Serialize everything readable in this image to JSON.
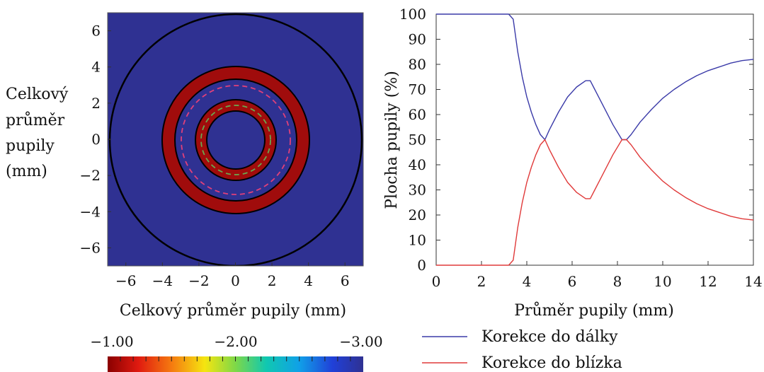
{
  "left_plot": {
    "ylabel_lines": [
      "Celkový",
      "průměr",
      "pupily",
      "(mm)"
    ],
    "xlabel": "Celkový průměr pupily (mm)",
    "x_ticks": [
      "−6",
      "−4",
      "−2",
      "0",
      "2",
      "4",
      "6"
    ],
    "y_ticks": [
      "6",
      "4",
      "2",
      "0",
      "−2",
      "−4",
      "−6"
    ],
    "colors": {
      "background": "#2f3192",
      "ring": "#a00c0c",
      "dash_inner": "#6aa84f",
      "dash_outer": "#e0407a"
    },
    "colorbar": {
      "labels": [
        "−1.00",
        "−2.00",
        "−3.00"
      ]
    }
  },
  "chart_data": {
    "type": "line",
    "xlabel": "Průměr pupily (mm)",
    "ylabel": "Plocha pupily (%)",
    "xlim": [
      0,
      14
    ],
    "ylim": [
      0,
      100
    ],
    "x_ticks": [
      "0",
      "2",
      "4",
      "6",
      "8",
      "10",
      "12",
      "14"
    ],
    "y_ticks": [
      "0",
      "10",
      "20",
      "30",
      "40",
      "50",
      "60",
      "70",
      "80",
      "90",
      "100"
    ],
    "grid": false,
    "legend_position": "bottom",
    "series": [
      {
        "name": "Korekce do dálky",
        "color": "#3a3aa8",
        "x": [
          0,
          3.0,
          3.2,
          3.4,
          3.6,
          3.8,
          4.0,
          4.2,
          4.4,
          4.6,
          4.8,
          5.0,
          5.4,
          5.8,
          6.2,
          6.6,
          6.8,
          7.0,
          7.4,
          7.8,
          8.2,
          8.4,
          8.6,
          9.0,
          9.5,
          10.0,
          10.5,
          11.0,
          11.5,
          12.0,
          12.5,
          13.0,
          13.5,
          14.0
        ],
        "values": [
          100,
          100,
          100,
          98,
          85,
          75,
          67,
          61,
          56,
          52,
          50,
          54,
          61,
          67,
          71,
          73.5,
          73.5,
          70,
          63,
          56,
          50,
          50,
          52,
          57,
          62,
          66.5,
          70,
          73,
          75.5,
          77.5,
          79,
          80.5,
          81.5,
          82
        ]
      },
      {
        "name": "Korekce do blízka",
        "color": "#e03a3a",
        "x": [
          0,
          3.0,
          3.2,
          3.4,
          3.6,
          3.8,
          4.0,
          4.2,
          4.4,
          4.6,
          4.8,
          5.0,
          5.4,
          5.8,
          6.2,
          6.6,
          6.8,
          7.0,
          7.4,
          7.8,
          8.2,
          8.4,
          8.6,
          9.0,
          9.5,
          10.0,
          10.5,
          11.0,
          11.5,
          12.0,
          12.5,
          13.0,
          13.5,
          14.0
        ],
        "values": [
          0,
          0,
          0,
          2,
          15,
          25,
          33,
          39,
          44,
          48,
          50,
          46,
          39,
          33,
          29,
          26.5,
          26.5,
          30,
          37,
          44,
          50,
          50,
          48,
          43,
          38,
          33.5,
          30,
          27,
          24.5,
          22.5,
          21,
          19.5,
          18.5,
          18
        ]
      }
    ]
  }
}
